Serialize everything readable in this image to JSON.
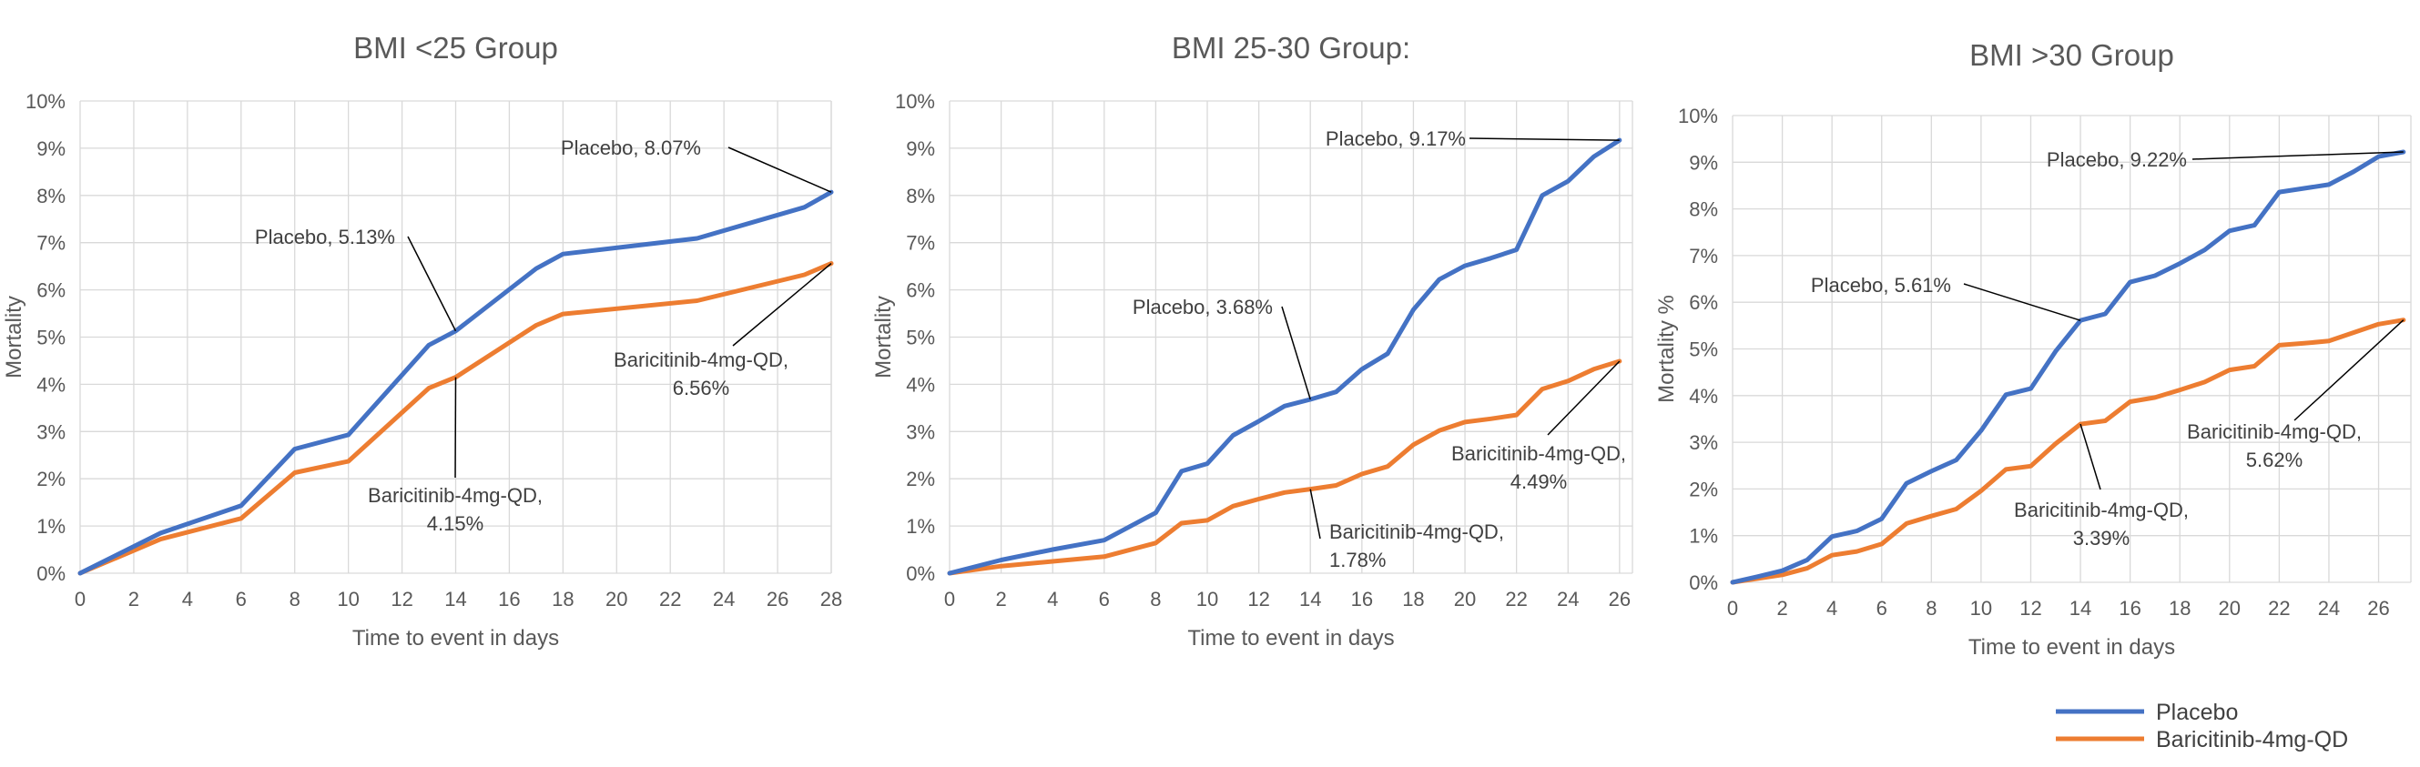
{
  "colors": {
    "placebo": "#4472c4",
    "baricitinib": "#ed7d31",
    "grid": "#d9d9d9",
    "text": "#595959"
  },
  "legend": {
    "position": "bottom-right",
    "items": [
      {
        "label": "Placebo",
        "color": "#4472c4"
      },
      {
        "label": "Baricitinib-4mg-QD",
        "color": "#ed7d31"
      }
    ]
  },
  "chart_data": [
    {
      "type": "line",
      "title": "BMI <25 Group",
      "xlabel": "Time to event in days",
      "ylabel": "Mortality",
      "xlim": [
        0,
        28
      ],
      "ylim": [
        0,
        0.1
      ],
      "x_ticks": [
        "0",
        "2",
        "4",
        "6",
        "8",
        "10",
        "12",
        "14",
        "16",
        "18",
        "20",
        "22",
        "24",
        "26",
        "28"
      ],
      "y_ticks": [
        "0%",
        "1%",
        "2%",
        "3%",
        "4%",
        "5%",
        "6%",
        "7%",
        "8%",
        "9%",
        "10%"
      ],
      "grid": true,
      "series": [
        {
          "name": "Placebo",
          "color": "#4472c4",
          "x": [
            0,
            3,
            6,
            8,
            10,
            13,
            14,
            17,
            18,
            23,
            27,
            28
          ],
          "y": [
            0,
            0.0085,
            0.0143,
            0.0263,
            0.0293,
            0.0483,
            0.0513,
            0.0645,
            0.0676,
            0.0709,
            0.0775,
            0.0807
          ]
        },
        {
          "name": "Baricitinib-4mg-QD",
          "color": "#ed7d31",
          "x": [
            0,
            3,
            6,
            8,
            10,
            13,
            14,
            17,
            18,
            23,
            27,
            28
          ],
          "y": [
            0,
            0.0072,
            0.0116,
            0.0213,
            0.0237,
            0.0392,
            0.0415,
            0.0525,
            0.0549,
            0.0577,
            0.0632,
            0.0656
          ]
        }
      ],
      "annotations": [
        {
          "lines": [
            "Placebo, 8.07%"
          ],
          "x": 28,
          "y": 0.0807
        },
        {
          "lines": [
            "Placebo, 5.13%"
          ],
          "x": 14,
          "y": 0.0513
        },
        {
          "lines": [
            "Baricitinib-4mg-QD,",
            "6.56%"
          ],
          "x": 28,
          "y": 0.0656
        },
        {
          "lines": [
            "Baricitinib-4mg-QD,",
            "4.15%"
          ],
          "x": 14,
          "y": 0.0415
        }
      ]
    },
    {
      "type": "line",
      "title": "BMI 25-30 Group:",
      "xlabel": "Time to event in days",
      "ylabel": "Mortality",
      "xlim": [
        0,
        26.5
      ],
      "ylim": [
        0,
        0.1
      ],
      "x_ticks": [
        "0",
        "2",
        "4",
        "6",
        "8",
        "10",
        "12",
        "14",
        "16",
        "18",
        "20",
        "22",
        "24",
        "26"
      ],
      "y_ticks": [
        "0%",
        "1%",
        "2%",
        "3%",
        "4%",
        "5%",
        "6%",
        "7%",
        "8%",
        "9%",
        "10%"
      ],
      "grid": true,
      "series": [
        {
          "name": "Placebo",
          "color": "#4472c4",
          "x": [
            0,
            2,
            4,
            6,
            8,
            9,
            10,
            11,
            12,
            13,
            14,
            15,
            16,
            17,
            18,
            19,
            20,
            21,
            22,
            23,
            24,
            25,
            26
          ],
          "y": [
            0,
            0.0028,
            0.005,
            0.007,
            0.0128,
            0.0216,
            0.0232,
            0.0292,
            0.0322,
            0.0354,
            0.0368,
            0.0384,
            0.0432,
            0.0465,
            0.0558,
            0.0622,
            0.0651,
            0.0667,
            0.0685,
            0.08,
            0.083,
            0.0882,
            0.0917
          ]
        },
        {
          "name": "Baricitinib-4mg-QD",
          "color": "#ed7d31",
          "x": [
            0,
            2,
            4,
            6,
            8,
            9,
            10,
            11,
            12,
            13,
            14,
            15,
            16,
            17,
            18,
            19,
            20,
            21,
            22,
            23,
            24,
            25,
            26
          ],
          "y": [
            0,
            0.0015,
            0.0025,
            0.0035,
            0.0064,
            0.0106,
            0.0112,
            0.0142,
            0.0157,
            0.0171,
            0.0178,
            0.0186,
            0.021,
            0.0226,
            0.0272,
            0.0302,
            0.032,
            0.0327,
            0.0335,
            0.039,
            0.0407,
            0.0432,
            0.0449
          ]
        }
      ],
      "annotations": [
        {
          "lines": [
            "Placebo, 9.17%"
          ],
          "x": 26,
          "y": 0.0917
        },
        {
          "lines": [
            "Placebo, 3.68%"
          ],
          "x": 14,
          "y": 0.0368
        },
        {
          "lines": [
            "Baricitinib-4mg-QD,",
            "4.49%"
          ],
          "x": 26,
          "y": 0.0449
        },
        {
          "lines": [
            "Baricitinib-4mg-QD,",
            "1.78%"
          ],
          "x": 14,
          "y": 0.0178
        }
      ]
    },
    {
      "type": "line",
      "title": "BMI >30 Group",
      "xlabel": "Time to event in days",
      "ylabel": "Mortality %",
      "xlim": [
        0,
        27.3
      ],
      "ylim": [
        0,
        0.1
      ],
      "x_ticks": [
        "0",
        "2",
        "4",
        "6",
        "8",
        "10",
        "12",
        "14",
        "16",
        "18",
        "20",
        "22",
        "24",
        "26"
      ],
      "y_ticks": [
        "0%",
        "1%",
        "2%",
        "3%",
        "4%",
        "5%",
        "6%",
        "7%",
        "8%",
        "9%",
        "10%"
      ],
      "grid": true,
      "series": [
        {
          "name": "Placebo",
          "color": "#4472c4",
          "x": [
            0,
            1,
            2,
            3,
            4,
            5,
            6,
            7,
            8,
            9,
            10,
            11,
            12,
            13,
            14,
            15,
            16,
            17,
            18,
            19,
            20,
            21,
            22,
            23,
            24,
            25,
            26,
            27
          ],
          "y": [
            0,
            0.0012,
            0.0025,
            0.0048,
            0.0098,
            0.011,
            0.0136,
            0.0212,
            0.0238,
            0.0262,
            0.0325,
            0.0402,
            0.0415,
            0.0495,
            0.0561,
            0.0575,
            0.0643,
            0.0657,
            0.0683,
            0.0712,
            0.0753,
            0.0765,
            0.0836,
            0.0844,
            0.0852,
            0.088,
            0.0912,
            0.0922
          ]
        },
        {
          "name": "Baricitinib-4mg-QD",
          "color": "#ed7d31",
          "x": [
            0,
            1,
            2,
            3,
            4,
            5,
            6,
            7,
            8,
            9,
            10,
            11,
            12,
            13,
            14,
            15,
            16,
            17,
            18,
            19,
            20,
            21,
            22,
            23,
            24,
            25,
            26,
            27
          ],
          "y": [
            0,
            0.0008,
            0.0016,
            0.003,
            0.0058,
            0.0066,
            0.0082,
            0.0126,
            0.0142,
            0.0157,
            0.0196,
            0.0242,
            0.0249,
            0.0297,
            0.0339,
            0.0346,
            0.0387,
            0.0396,
            0.0412,
            0.0429,
            0.0455,
            0.0463,
            0.0508,
            0.0512,
            0.0517,
            0.0535,
            0.0553,
            0.0562
          ]
        }
      ],
      "annotations": [
        {
          "lines": [
            "Placebo, 9.22%"
          ],
          "x": 27,
          "y": 0.0922
        },
        {
          "lines": [
            "Placebo, 5.61%"
          ],
          "x": 14,
          "y": 0.0561
        },
        {
          "lines": [
            "Baricitinib-4mg-QD,",
            "5.62%"
          ],
          "x": 27,
          "y": 0.0562
        },
        {
          "lines": [
            "Baricitinib-4mg-QD,",
            "3.39%"
          ],
          "x": 14,
          "y": 0.0339
        }
      ]
    }
  ]
}
